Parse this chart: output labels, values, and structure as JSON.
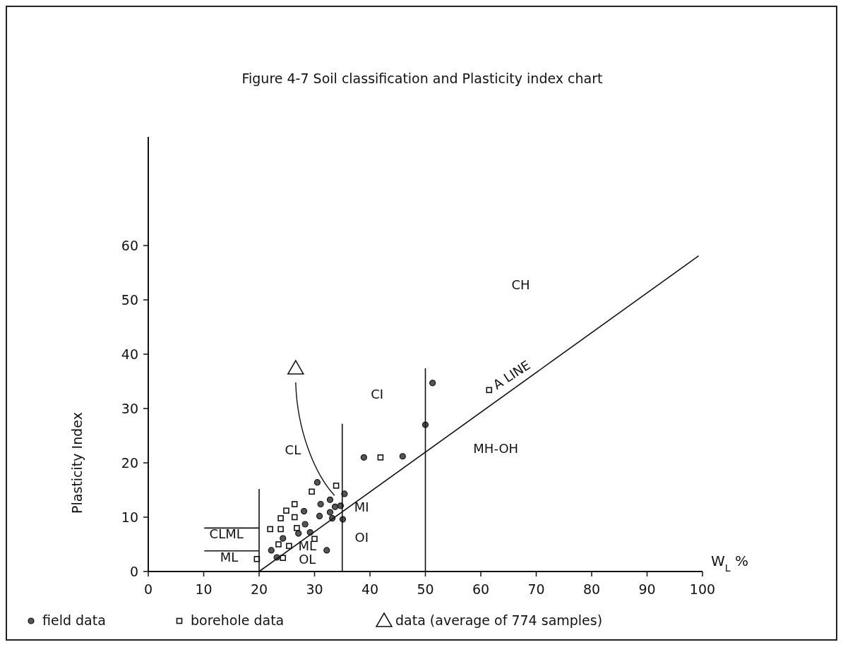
{
  "chart_data": {
    "type": "scatter",
    "title": "Figure 4-7   Soil classification and  Plasticity index chart",
    "xlabel": "W$_{L}$  %",
    "ylabel": "Plasticity Index",
    "xlim": [
      0,
      100
    ],
    "ylim": [
      0,
      80
    ],
    "xticks": [
      0,
      10,
      20,
      30,
      40,
      50,
      60,
      70,
      80,
      90,
      100
    ],
    "yticks": [
      0,
      10,
      20,
      30,
      40,
      50,
      60
    ],
    "grid": false,
    "legend": "bottom",
    "series": [
      {
        "name": "field data",
        "color": "#555555",
        "marker": "circle",
        "x": [
          30.5,
          31.1,
          30.9,
          33.2,
          35.1,
          34.7,
          35.4,
          32.8,
          33.7,
          32.8,
          32.2,
          27.1,
          29.2,
          28.3,
          28.1,
          22.2,
          23.2,
          24.3,
          38.9,
          45.9,
          50.0,
          51.3
        ],
        "values": [
          16.4,
          12.4,
          10.2,
          9.8,
          9.6,
          12.1,
          14.3,
          13.2,
          11.9,
          10.9,
          3.9,
          7.0,
          7.2,
          8.7,
          11.1,
          3.9,
          2.6,
          6.1,
          21.0,
          21.2,
          27.0,
          34.7
        ]
      },
      {
        "name": "borehole data",
        "color": "#111111",
        "marker": "square",
        "x": [
          19.6,
          22.0,
          26.4,
          24.9,
          23.9,
          26.4,
          23.9,
          23.5,
          25.4,
          24.3,
          30.0,
          29.5,
          33.9,
          26.8,
          41.9,
          61.5
        ],
        "values": [
          2.3,
          7.8,
          12.4,
          11.2,
          9.8,
          10.0,
          7.8,
          5.0,
          4.7,
          2.5,
          6.0,
          14.7,
          15.8,
          8.0,
          21.0,
          33.4
        ]
      },
      {
        "name": "data (average of 774 samples)",
        "color": "#111111",
        "marker": "triangle",
        "x": [
          26.6
        ],
        "values": [
          37.4
        ]
      },
      {
        "type": "line",
        "color": "#111111",
        "marker": "none",
        "x": [
          20,
          99.3
        ],
        "values": [
          0,
          58.1
        ]
      },
      {
        "type": "line",
        "color": "#111111",
        "marker": "none",
        "x": [
          20,
          20
        ],
        "values": [
          0,
          15.2
        ]
      },
      {
        "type": "line",
        "color": "#111111",
        "marker": "none",
        "x": [
          35,
          35
        ],
        "values": [
          0,
          27.2
        ]
      },
      {
        "type": "line",
        "color": "#111111",
        "marker": "none",
        "x": [
          50,
          50
        ],
        "values": [
          0,
          37.4
        ]
      },
      {
        "type": "line",
        "color": "#111111",
        "marker": "none",
        "x": [
          10.1,
          20
        ],
        "values": [
          8.0,
          8.0
        ]
      },
      {
        "type": "line",
        "color": "#111111",
        "marker": "none",
        "x": [
          10.1,
          20
        ],
        "values": [
          3.8,
          3.8
        ]
      }
    ],
    "annotations": [
      "CH",
      "A LINE",
      "CI",
      "CL",
      "MH-OH",
      "MI",
      "OI",
      "CLML",
      "ML",
      "ML",
      "OL"
    ]
  }
}
